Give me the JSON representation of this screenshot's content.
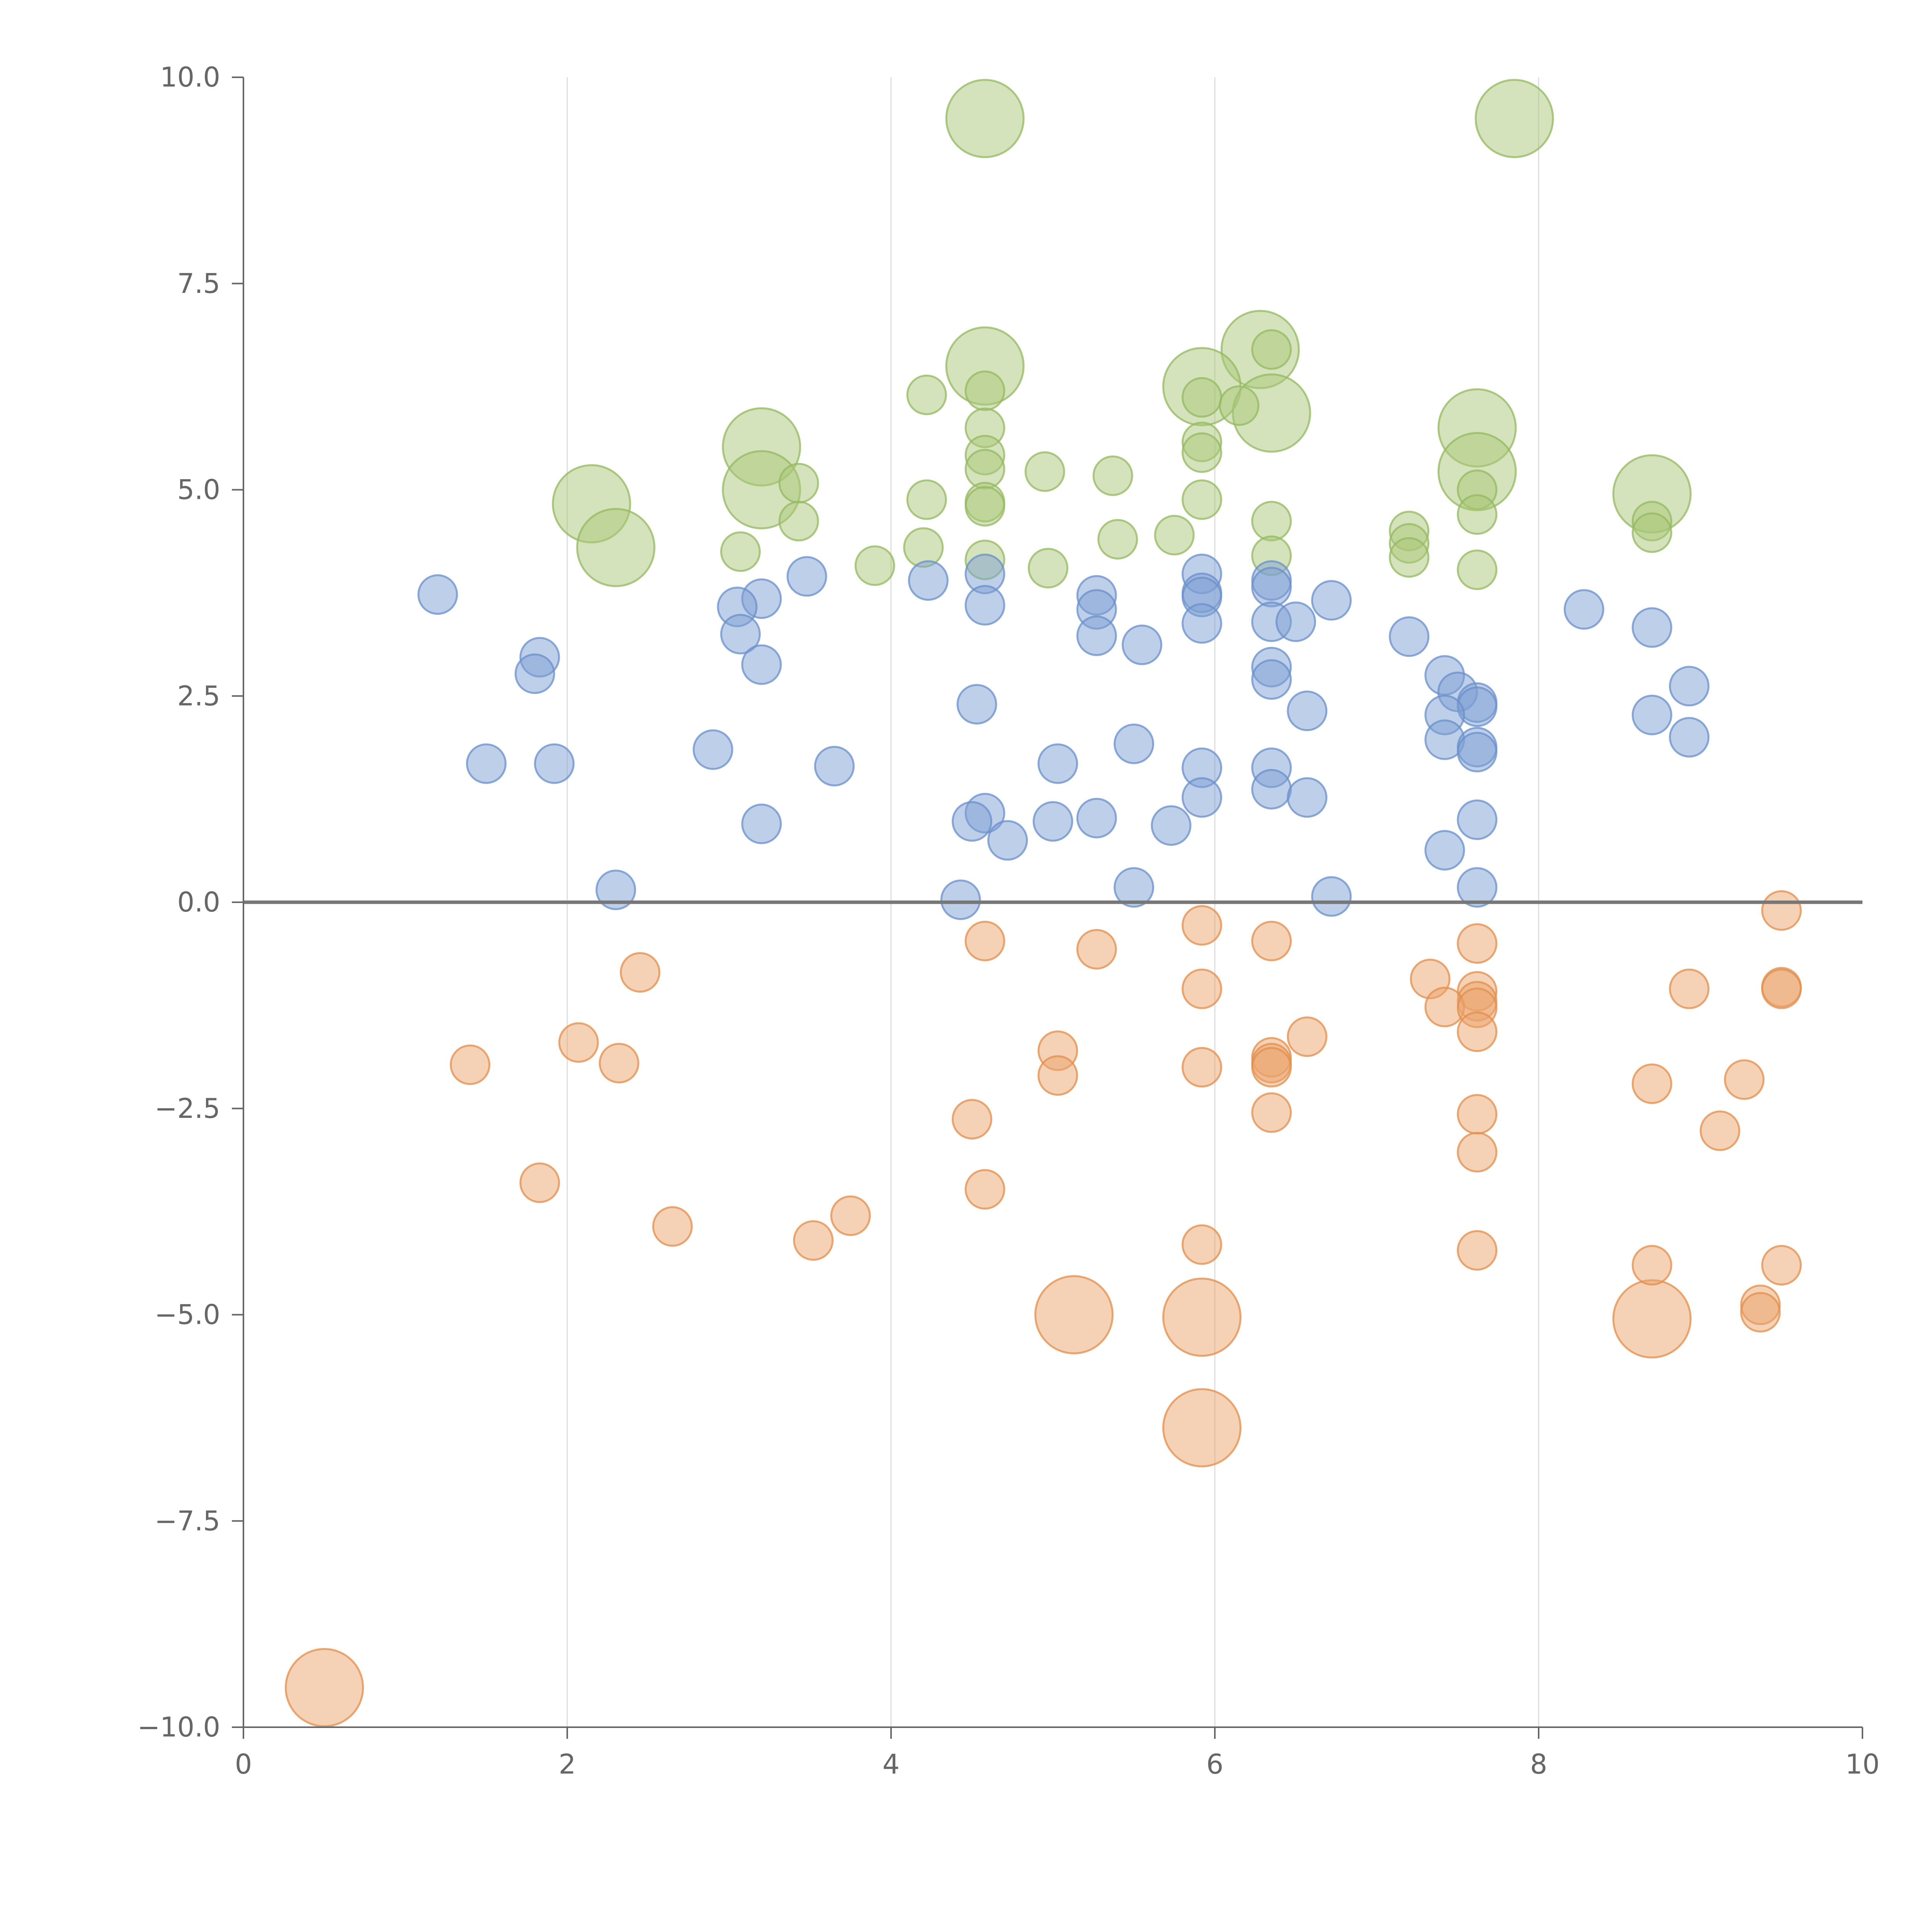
{
  "chart_data": {
    "type": "scatter",
    "title": "",
    "xlabel": "",
    "ylabel": "",
    "xlim": [
      0,
      10
    ],
    "ylim": [
      -10,
      10
    ],
    "grid": "vertical",
    "x_ticks": [
      "0",
      "2",
      "4",
      "6",
      "8",
      "10"
    ],
    "y_ticks": [
      "10.0",
      "7.5",
      "5.0",
      "2.5",
      "0.0",
      "−2.5",
      "−5.0",
      "−7.5",
      "−10.0"
    ],
    "series": [
      {
        "name": "green",
        "fill": "#a9c878",
        "stroke": "#94b860",
        "points": [
          [
            4.58,
            9.5,
            2
          ],
          [
            7.85,
            9.5,
            2
          ],
          [
            4.58,
            6.5,
            2
          ],
          [
            6.28,
            6.7,
            2
          ],
          [
            5.92,
            6.25,
            2
          ],
          [
            6.35,
            5.93,
            2
          ],
          [
            3.2,
            5.52,
            2
          ],
          [
            3.2,
            5.0,
            2
          ],
          [
            2.15,
            4.83,
            2
          ],
          [
            2.3,
            4.3,
            2
          ],
          [
            7.62,
            5.75,
            2
          ],
          [
            7.62,
            5.22,
            2
          ],
          [
            8.7,
            4.95,
            2
          ],
          [
            6.35,
            6.7,
            1
          ],
          [
            4.22,
            6.15,
            1
          ],
          [
            4.58,
            6.2,
            1
          ],
          [
            5.92,
            6.12,
            1
          ],
          [
            6.15,
            6.02,
            1
          ],
          [
            4.58,
            5.75,
            1
          ],
          [
            5.92,
            5.58,
            1
          ],
          [
            5.92,
            5.45,
            1
          ],
          [
            4.58,
            5.42,
            1
          ],
          [
            4.58,
            5.25,
            1
          ],
          [
            4.95,
            5.22,
            1
          ],
          [
            5.37,
            5.17,
            1
          ],
          [
            3.43,
            5.08,
            1
          ],
          [
            7.62,
            5.0,
            1
          ],
          [
            4.22,
            4.88,
            1
          ],
          [
            5.92,
            4.88,
            1
          ],
          [
            4.58,
            4.85,
            1
          ],
          [
            4.58,
            4.8,
            1
          ],
          [
            7.62,
            4.7,
            1
          ],
          [
            3.43,
            4.62,
            1
          ],
          [
            6.35,
            4.62,
            1
          ],
          [
            8.7,
            4.62,
            1
          ],
          [
            7.2,
            4.5,
            1
          ],
          [
            8.7,
            4.48,
            1
          ],
          [
            5.75,
            4.45,
            1
          ],
          [
            5.4,
            4.4,
            1
          ],
          [
            7.2,
            4.35,
            1
          ],
          [
            4.2,
            4.3,
            1
          ],
          [
            3.07,
            4.25,
            1
          ],
          [
            6.35,
            4.2,
            1
          ],
          [
            7.2,
            4.18,
            1
          ],
          [
            4.58,
            4.15,
            1
          ],
          [
            3.9,
            4.08,
            1
          ],
          [
            4.97,
            4.05,
            1
          ],
          [
            7.62,
            4.03,
            1
          ]
        ]
      },
      {
        "name": "blue",
        "fill": "#7ea0d4",
        "stroke": "#6a8fca",
        "points": [
          [
            1.2,
            3.73,
            1
          ],
          [
            3.48,
            3.95,
            1
          ],
          [
            4.23,
            3.9,
            1
          ],
          [
            4.58,
            3.98,
            1
          ],
          [
            5.92,
            3.98,
            1
          ],
          [
            6.35,
            3.9,
            1
          ],
          [
            6.35,
            3.82,
            1
          ],
          [
            5.92,
            3.75,
            1
          ],
          [
            5.92,
            3.7,
            1
          ],
          [
            5.27,
            3.72,
            1
          ],
          [
            3.2,
            3.68,
            1
          ],
          [
            6.72,
            3.66,
            1
          ],
          [
            4.58,
            3.6,
            1
          ],
          [
            3.05,
            3.58,
            1
          ],
          [
            5.27,
            3.55,
            1
          ],
          [
            8.28,
            3.55,
            1
          ],
          [
            6.35,
            3.4,
            1
          ],
          [
            6.5,
            3.4,
            1
          ],
          [
            5.92,
            3.38,
            1
          ],
          [
            8.7,
            3.33,
            1
          ],
          [
            3.07,
            3.25,
            1
          ],
          [
            5.27,
            3.23,
            1
          ],
          [
            7.2,
            3.22,
            1
          ],
          [
            5.55,
            3.12,
            1
          ],
          [
            1.83,
            2.97,
            1
          ],
          [
            3.2,
            2.88,
            1
          ],
          [
            6.35,
            2.85,
            1
          ],
          [
            1.8,
            2.77,
            1
          ],
          [
            7.42,
            2.75,
            1
          ],
          [
            6.35,
            2.7,
            1
          ],
          [
            8.93,
            2.62,
            1
          ],
          [
            7.5,
            2.55,
            1
          ],
          [
            4.53,
            2.4,
            1
          ],
          [
            7.62,
            2.42,
            1
          ],
          [
            7.62,
            2.37,
            1
          ],
          [
            6.57,
            2.32,
            1
          ],
          [
            7.42,
            2.27,
            1
          ],
          [
            8.7,
            2.27,
            1
          ],
          [
            8.93,
            2.0,
            1
          ],
          [
            7.42,
            1.97,
            1
          ],
          [
            5.5,
            1.92,
            1
          ],
          [
            7.62,
            1.88,
            1
          ],
          [
            2.9,
            1.85,
            1
          ],
          [
            7.62,
            1.82,
            1
          ],
          [
            1.5,
            1.68,
            1
          ],
          [
            1.92,
            1.68,
            1
          ],
          [
            5.03,
            1.68,
            1
          ],
          [
            3.65,
            1.65,
            1
          ],
          [
            5.92,
            1.63,
            1
          ],
          [
            6.35,
            1.63,
            1
          ],
          [
            6.35,
            1.37,
            1
          ],
          [
            5.92,
            1.27,
            1
          ],
          [
            6.57,
            1.27,
            1
          ],
          [
            4.58,
            1.08,
            1
          ],
          [
            5.27,
            1.02,
            1
          ],
          [
            7.62,
            1.0,
            1
          ],
          [
            4.5,
            0.98,
            1
          ],
          [
            5.0,
            0.98,
            1
          ],
          [
            3.2,
            0.95,
            1
          ],
          [
            5.73,
            0.93,
            1
          ],
          [
            4.72,
            0.75,
            1
          ],
          [
            7.42,
            0.63,
            1
          ],
          [
            2.3,
            0.15,
            1
          ],
          [
            5.5,
            0.18,
            1
          ],
          [
            7.62,
            0.18,
            1
          ],
          [
            4.43,
            0.03,
            1
          ],
          [
            6.72,
            0.07,
            1
          ]
        ]
      },
      {
        "name": "orange",
        "fill": "#eba46c",
        "stroke": "#e28e4c",
        "points": [
          [
            5.13,
            -5.0,
            2
          ],
          [
            5.92,
            -5.03,
            2
          ],
          [
            5.92,
            -6.37,
            2
          ],
          [
            8.7,
            -5.05,
            2
          ],
          [
            0.5,
            -9.52,
            2
          ],
          [
            9.5,
            -0.1,
            1
          ],
          [
            5.92,
            -0.28,
            1
          ],
          [
            4.58,
            -0.47,
            1
          ],
          [
            6.35,
            -0.47,
            1
          ],
          [
            7.62,
            -0.5,
            1
          ],
          [
            5.27,
            -0.57,
            1
          ],
          [
            2.45,
            -0.85,
            1
          ],
          [
            7.33,
            -0.93,
            1
          ],
          [
            8.93,
            -1.05,
            1
          ],
          [
            9.5,
            -1.03,
            1
          ],
          [
            9.5,
            -1.05,
            1
          ],
          [
            5.92,
            -1.05,
            1
          ],
          [
            7.62,
            -1.08,
            1
          ],
          [
            7.62,
            -1.2,
            1
          ],
          [
            7.42,
            -1.27,
            1
          ],
          [
            7.62,
            -1.28,
            1
          ],
          [
            7.62,
            -1.57,
            1
          ],
          [
            6.57,
            -1.63,
            1
          ],
          [
            2.07,
            -1.7,
            1
          ],
          [
            5.03,
            -1.8,
            1
          ],
          [
            6.35,
            -1.88,
            1
          ],
          [
            6.35,
            -1.95,
            1
          ],
          [
            6.35,
            -2.0,
            1
          ],
          [
            1.4,
            -1.97,
            1
          ],
          [
            2.32,
            -1.95,
            1
          ],
          [
            5.92,
            -2.0,
            1
          ],
          [
            5.03,
            -2.1,
            1
          ],
          [
            9.27,
            -2.15,
            1
          ],
          [
            8.7,
            -2.2,
            1
          ],
          [
            6.35,
            -2.55,
            1
          ],
          [
            7.62,
            -2.57,
            1
          ],
          [
            4.5,
            -2.63,
            1
          ],
          [
            9.12,
            -2.77,
            1
          ],
          [
            7.62,
            -3.03,
            1
          ],
          [
            1.83,
            -3.4,
            1
          ],
          [
            4.58,
            -3.48,
            1
          ],
          [
            3.75,
            -3.8,
            1
          ],
          [
            2.65,
            -3.93,
            1
          ],
          [
            3.52,
            -4.1,
            1
          ],
          [
            5.92,
            -4.15,
            1
          ],
          [
            7.62,
            -4.22,
            1
          ],
          [
            8.7,
            -4.4,
            1
          ],
          [
            9.5,
            -4.4,
            1
          ],
          [
            9.37,
            -4.88,
            1
          ],
          [
            9.37,
            -4.97,
            1
          ]
        ]
      }
    ]
  }
}
